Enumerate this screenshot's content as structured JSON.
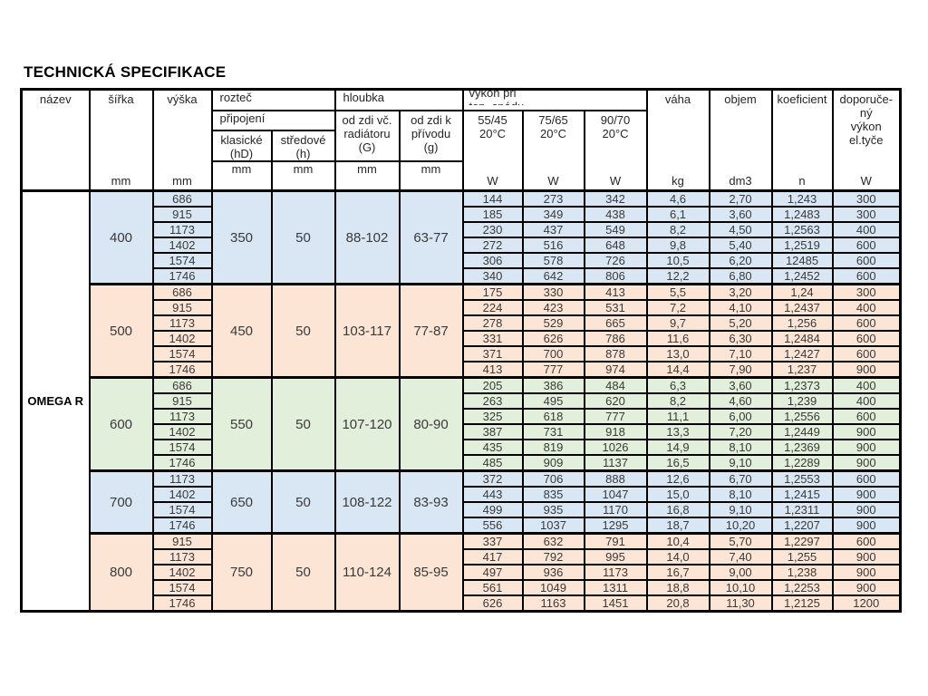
{
  "page": {
    "title": "TECHNICKÁ SPECIFIKACE"
  },
  "table": {
    "product_name": "OMEGA R",
    "header": {
      "nazev": "název",
      "sirka": {
        "label": "šířka",
        "unit": "mm"
      },
      "vyska": {
        "label": "výška",
        "unit": "mm"
      },
      "roztec": "rozteč",
      "pripojeni": "připojení",
      "klasicke": {
        "label": "klasické\n(hD)",
        "unit": "mm"
      },
      "stredove": {
        "label": "středové\n(h)",
        "unit": "mm"
      },
      "hloubka": "hloubka",
      "od_zdi_vc": {
        "label": "od zdi  vč.\nradiátoru\n(G)",
        "unit": "mm"
      },
      "od_zdi_k": {
        "label": "od zdi  k\npřívodu\n(g)",
        "unit": "mm"
      },
      "vykon": "výkon při\ntep.  spádu",
      "temp_cols": [
        {
          "label": "55/45\n20°C",
          "unit": "W"
        },
        {
          "label": "75/65\n20°C",
          "unit": "W"
        },
        {
          "label": "90/70\n20°C",
          "unit": "W"
        }
      ],
      "vaha": {
        "label": "váha",
        "unit": "kg"
      },
      "objem": {
        "label": "objem",
        "unit": "dm3"
      },
      "koeficient": {
        "label": "koeficient",
        "unit": "n"
      },
      "doporuceny": {
        "label": "doporuče-\nný\nvýkon\nel.tyče",
        "unit": "W"
      }
    },
    "colors": {
      "blue": "#d9e7f5",
      "peach": "#fce5d5",
      "green": "#e2efda"
    },
    "groups": [
      {
        "sirka": "400",
        "klasicke": "350",
        "stredove": "50",
        "g_range": "88-102",
        "g2_range": "63-77",
        "color": "blue",
        "rows": [
          [
            "686",
            "144",
            "273",
            "342",
            "4,6",
            "2,70",
            "1,243",
            "300"
          ],
          [
            "915",
            "185",
            "349",
            "438",
            "6,1",
            "3,60",
            "1,2483",
            "300"
          ],
          [
            "1173",
            "230",
            "437",
            "549",
            "8,2",
            "4,50",
            "1,2563",
            "400"
          ],
          [
            "1402",
            "272",
            "516",
            "648",
            "9,8",
            "5,40",
            "1,2519",
            "600"
          ],
          [
            "1574",
            "306",
            "578",
            "726",
            "10,5",
            "6,20",
            "12485",
            "600"
          ],
          [
            "1746",
            "340",
            "642",
            "806",
            "12,2",
            "6,80",
            "1,2452",
            "600"
          ]
        ]
      },
      {
        "sirka": "500",
        "klasicke": "450",
        "stredove": "50",
        "g_range": "103-117",
        "g2_range": "77-87",
        "color": "peach",
        "rows": [
          [
            "686",
            "175",
            "330",
            "413",
            "5,5",
            "3,20",
            "1,24",
            "300"
          ],
          [
            "915",
            "224",
            "423",
            "531",
            "7,2",
            "4,10",
            "1,2437",
            "400"
          ],
          [
            "1173",
            "278",
            "529",
            "665",
            "9,7",
            "5,20",
            "1,256",
            "600"
          ],
          [
            "1402",
            "331",
            "626",
            "786",
            "11,6",
            "6,30",
            "1,2484",
            "600"
          ],
          [
            "1574",
            "371",
            "700",
            "878",
            "13,0",
            "7,10",
            "1,2427",
            "600"
          ],
          [
            "1746",
            "413",
            "777",
            "974",
            "14,4",
            "7,90",
            "1,237",
            "900"
          ]
        ]
      },
      {
        "sirka": "600",
        "klasicke": "550",
        "stredove": "50",
        "g_range": "107-120",
        "g2_range": "80-90",
        "color": "green",
        "rows": [
          [
            "686",
            "205",
            "386",
            "484",
            "6,3",
            "3,60",
            "1,2373",
            "400"
          ],
          [
            "915",
            "263",
            "495",
            "620",
            "8,2",
            "4,60",
            "1,239",
            "400"
          ],
          [
            "1173",
            "325",
            "618",
            "777",
            "11,1",
            "6,00",
            "1,2556",
            "600"
          ],
          [
            "1402",
            "387",
            "731",
            "918",
            "13,3",
            "7,20",
            "1,2449",
            "900"
          ],
          [
            "1574",
            "435",
            "819",
            "1026",
            "14,9",
            "8,10",
            "1,2369",
            "900"
          ],
          [
            "1746",
            "485",
            "909",
            "1137",
            "16,5",
            "9,10",
            "1,2289",
            "900"
          ]
        ]
      },
      {
        "sirka": "700",
        "klasicke": "650",
        "stredove": "50",
        "g_range": "108-122",
        "g2_range": "83-93",
        "color": "blue",
        "rows": [
          [
            "1173",
            "372",
            "706",
            "888",
            "12,6",
            "6,70",
            "1,2553",
            "600"
          ],
          [
            "1402",
            "443",
            "835",
            "1047",
            "15,0",
            "8,10",
            "1,2415",
            "900"
          ],
          [
            "1574",
            "499",
            "935",
            "1170",
            "16,8",
            "9,10",
            "1,2311",
            "900"
          ],
          [
            "1746",
            "556",
            "1037",
            "1295",
            "18,7",
            "10,20",
            "1,2207",
            "900"
          ]
        ]
      },
      {
        "sirka": "800",
        "klasicke": "750",
        "stredove": "50",
        "g_range": "110-124",
        "g2_range": "85-95",
        "color": "peach",
        "rows": [
          [
            "915",
            "337",
            "632",
            "791",
            "10,4",
            "5,70",
            "1,2297",
            "600"
          ],
          [
            "1173",
            "417",
            "792",
            "995",
            "14,0",
            "7,40",
            "1,255",
            "900"
          ],
          [
            "1402",
            "497",
            "936",
            "1173",
            "16,7",
            "9,00",
            "1,238",
            "900"
          ],
          [
            "1574",
            "561",
            "1049",
            "1311",
            "18,8",
            "10,10",
            "1,2253",
            "900"
          ],
          [
            "1746",
            "626",
            "1163",
            "1451",
            "20,8",
            "11,30",
            "1,2125",
            "1200"
          ]
        ]
      }
    ]
  }
}
